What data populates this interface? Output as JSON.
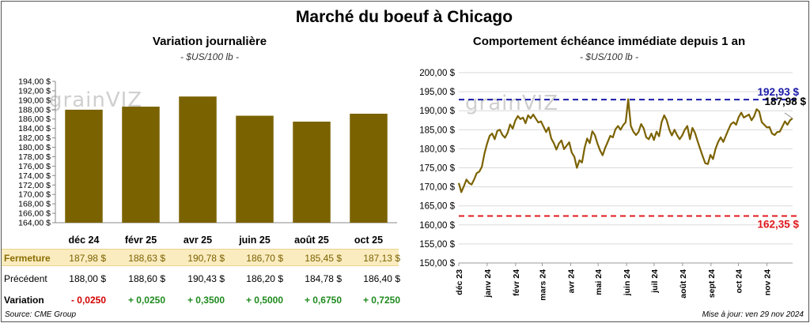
{
  "title": "Marché du boeuf à Chicago",
  "left_panel": {
    "title": "Variation journalière",
    "subtitle": "- $US/100 lb -",
    "watermark": "grainVIZ"
  },
  "right_panel": {
    "title": "Comportement échéance immédiate depuis 1 an",
    "subtitle": "- $US/100 lb -",
    "watermark": "grainVIZ"
  },
  "table": {
    "row_close_label": "Fermeture",
    "row_prev_label": "Précédent",
    "row_var_label": "Variation",
    "close": [
      "187,98 $",
      "188,63 $",
      "190,78 $",
      "186,70 $",
      "185,45 $",
      "187,13 $"
    ],
    "prev": [
      "188,00 $",
      "188,60 $",
      "190,43 $",
      "186,20 $",
      "184,78 $",
      "186,40 $"
    ],
    "variation": [
      "- 0,0250",
      "+ 0,0250",
      "+ 0,3500",
      "+ 0,5000",
      "+ 0,6750",
      "+ 0,7250"
    ],
    "variation_signs": [
      "neg",
      "pos",
      "pos",
      "pos",
      "pos",
      "pos"
    ]
  },
  "footer": {
    "source": "Source: CME Group",
    "updated": "Mise à jour: ven 29 nov 2024"
  },
  "colors": {
    "bar": "#7b6200",
    "line": "#7b6200",
    "max_line": "#1a1aa8",
    "min_line": "#e0191e"
  },
  "chart_data": [
    {
      "type": "bar",
      "categories": [
        "déc 24",
        "févr 25",
        "avr 25",
        "juin 25",
        "août 25",
        "oct 25"
      ],
      "values": [
        187.98,
        188.63,
        190.78,
        186.7,
        185.45,
        187.13
      ],
      "ylim": [
        164,
        194
      ],
      "y_ticks": [
        "164,00 $",
        "166,00 $",
        "168,00 $",
        "170,00 $",
        "172,00 $",
        "174,00 $",
        "176,00 $",
        "178,00 $",
        "180,00 $",
        "182,00 $",
        "184,00 $",
        "186,00 $",
        "188,00 $",
        "190,00 $",
        "192,00 $",
        "194,00 $"
      ],
      "grid": false
    },
    {
      "type": "line",
      "x_ticks": [
        "déc 23",
        "janv 24",
        "févr 24",
        "mars 24",
        "avr 24",
        "mai 24",
        "juin 24",
        "juil 24",
        "août 24",
        "sept 24",
        "oct 24",
        "nov 24"
      ],
      "y_ticks": [
        "150,00 $",
        "155,00 $",
        "160,00 $",
        "165,00 $",
        "170,00 $",
        "175,00 $",
        "180,00 $",
        "185,00 $",
        "190,00 $",
        "195,00 $",
        "200,00 $"
      ],
      "ylim": [
        150,
        200
      ],
      "grid": true,
      "x_start": "2023-12-01",
      "x_end": "2024-11-29",
      "series": [
        {
          "values": [
            171.0,
            168.6,
            170.2,
            171.9,
            171.0,
            170.6,
            172.0,
            173.6,
            174.0,
            175.3,
            178.8,
            181.3,
            183.4,
            184.0,
            182.5,
            184.7,
            185.0,
            183.6,
            182.9,
            184.2,
            186.4,
            185.3,
            187.4,
            188.6,
            187.8,
            188.2,
            186.7,
            188.8,
            188.0,
            189.0,
            187.9,
            186.9,
            187.2,
            185.8,
            184.4,
            185.6,
            182.7,
            181.5,
            179.8,
            181.4,
            182.2,
            179.9,
            180.8,
            181.7,
            179.0,
            177.9,
            175.0,
            177.0,
            176.4,
            180.3,
            182.7,
            181.5,
            184.6,
            183.6,
            181.4,
            179.6,
            178.3,
            180.2,
            181.8,
            183.4,
            183.0,
            185.1,
            186.0,
            185.0,
            186.2,
            187.0,
            193.0,
            186.0,
            184.5,
            183.6,
            184.4,
            186.5,
            185.4,
            183.0,
            182.5,
            184.0,
            182.3,
            184.5,
            183.3,
            187.0,
            188.8,
            187.5,
            185.0,
            183.5,
            185.0,
            183.6,
            182.5,
            183.5,
            185.0,
            186.0,
            182.5,
            185.5,
            184.2,
            182.0,
            180.0,
            178.0,
            176.2,
            176.0,
            178.4,
            177.3,
            180.0,
            181.8,
            183.0,
            181.8,
            183.4,
            185.0,
            186.5,
            187.0,
            186.3,
            188.3,
            189.5,
            188.2,
            188.6,
            189.0,
            187.5,
            188.5,
            190.4,
            189.8,
            187.0,
            186.3,
            185.6,
            185.7,
            184.0,
            183.6,
            184.4,
            184.5,
            185.8,
            187.2,
            186.3,
            187.5,
            187.98
          ]
        }
      ],
      "reference_lines": [
        {
          "label": "192,93 $",
          "value": 192.93
        },
        {
          "label": "162,35 $",
          "value": 162.35
        }
      ],
      "last_value_label": "187,98 $"
    }
  ]
}
